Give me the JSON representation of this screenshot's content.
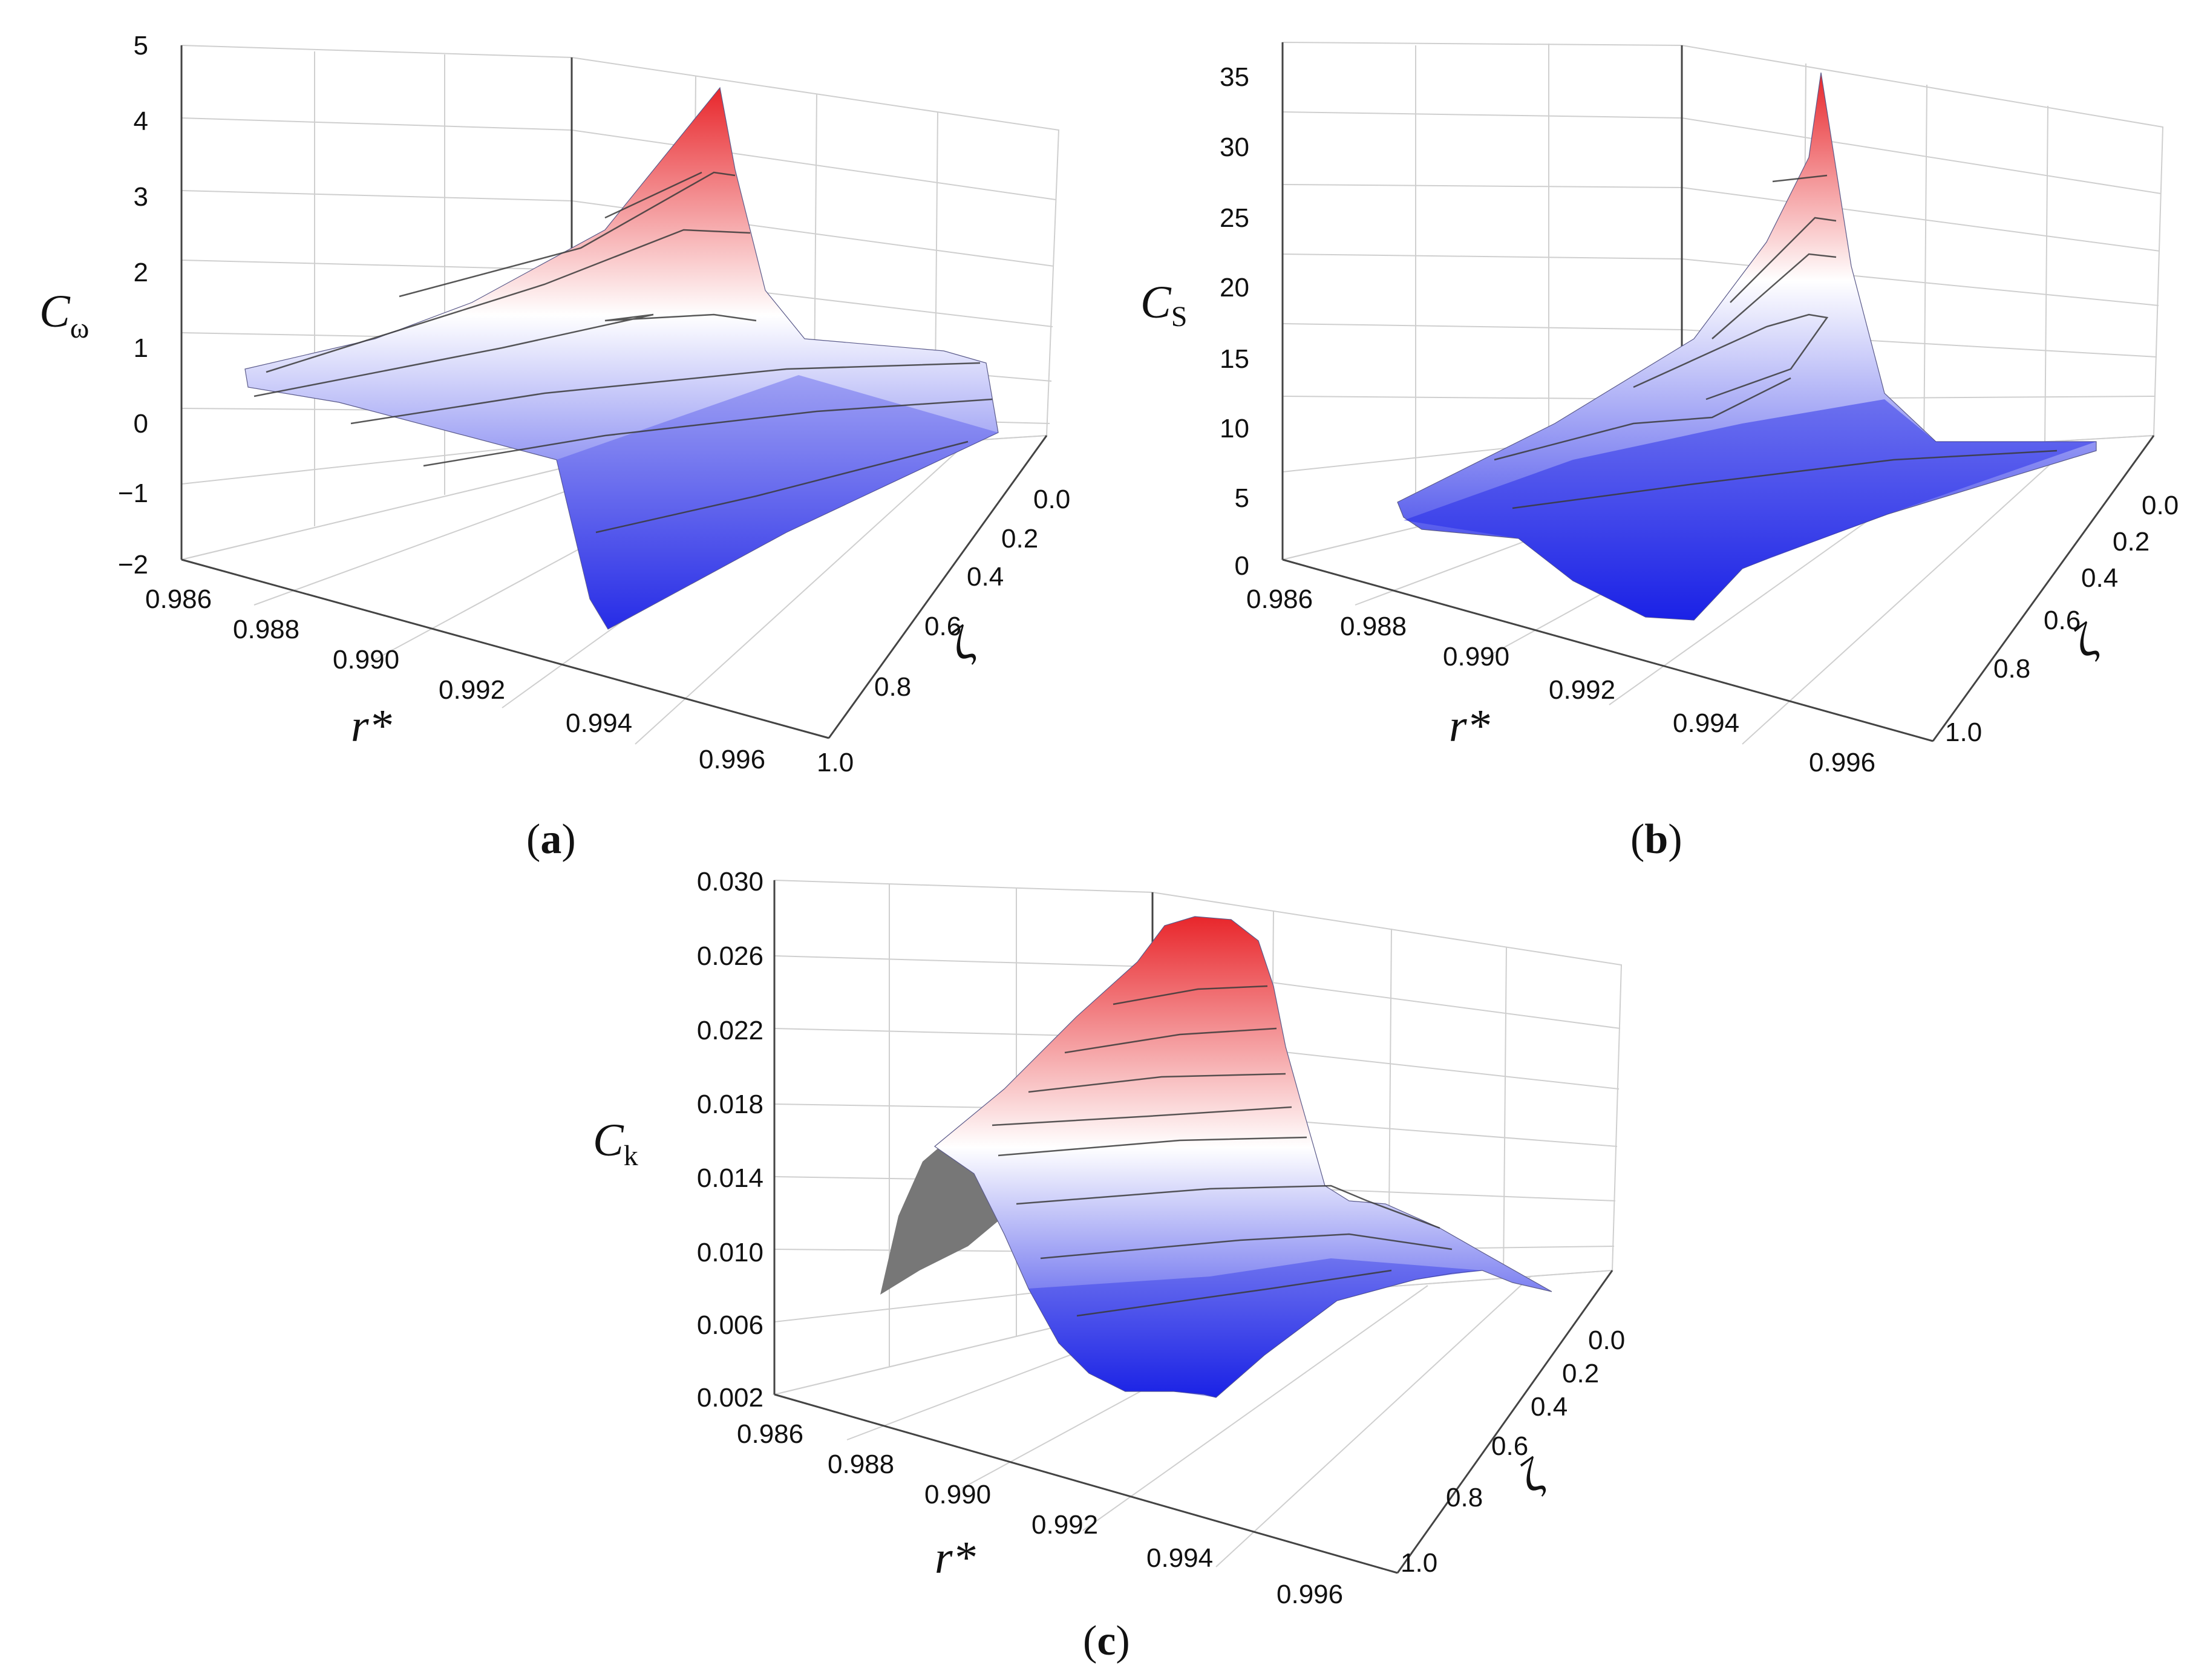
{
  "figure": {
    "panels": [
      {
        "id": "a",
        "label": "(a)",
        "label_letter": "a"
      },
      {
        "id": "b",
        "label": "(b)",
        "label_letter": "b"
      },
      {
        "id": "c",
        "label": "(c)",
        "label_letter": "c"
      }
    ]
  },
  "colors": {
    "high": "#e8262b",
    "mid": "#ffffff",
    "low": "#1b22e6",
    "shadow": "#777777",
    "grid": "#cfcfcf",
    "frame": "#444444"
  },
  "chart_data": [
    {
      "panel": "a",
      "type": "surface3d",
      "zlabel_main": "C",
      "zlabel_sub": "ω",
      "xlabel": "r*",
      "ylabel": "ζ",
      "xticks": [
        "0.986",
        "0.988",
        "0.990",
        "0.992",
        "0.994",
        "0.996"
      ],
      "yticks": [
        "0.0",
        "0.2",
        "0.4",
        "0.6",
        "0.8",
        "1.0"
      ],
      "zticks": [
        "5",
        "4",
        "3",
        "2",
        "1",
        "0",
        "−1",
        "−2"
      ],
      "zlim": [
        -2,
        5
      ],
      "xlim": [
        0.986,
        0.996
      ],
      "ylim": [
        0.0,
        1.0
      ],
      "peak": {
        "r": 0.9908,
        "zeta": 0.0,
        "value": 4.4
      },
      "surface_rows": [
        {
          "zeta": 0.0,
          "values": [
            0.6,
            1.5,
            3.2,
            4.4,
            0.3,
            0.1
          ]
        },
        {
          "zeta": 0.5,
          "values": [
            0.5,
            0.8,
            1.2,
            1.0,
            0.2,
            0.0
          ]
        },
        {
          "zeta": 1.0,
          "values": [
            0.6,
            0.5,
            0.2,
            -1.2,
            -0.6,
            -0.5
          ]
        }
      ]
    },
    {
      "panel": "b",
      "type": "surface3d",
      "zlabel_main": "C",
      "zlabel_sub": "S",
      "xlabel": "r*",
      "ylabel": "ζ",
      "xticks": [
        "0.986",
        "0.988",
        "0.990",
        "0.992",
        "0.994",
        "0.996"
      ],
      "yticks": [
        "0.0",
        "0.2",
        "0.4",
        "0.6",
        "0.8",
        "1.0"
      ],
      "zticks": [
        "35",
        "30",
        "25",
        "20",
        "15",
        "10",
        "5",
        "0"
      ],
      "zlim": [
        0,
        35
      ],
      "xlim": [
        0.986,
        0.996
      ],
      "ylim": [
        0.0,
        1.0
      ],
      "peak": {
        "r": 0.9915,
        "zeta": 0.0,
        "value": 35
      },
      "surface_rows": [
        {
          "zeta": 0.0,
          "values": [
            3.0,
            8.0,
            18.0,
            35.0,
            4.0,
            4.0
          ]
        },
        {
          "zeta": 0.5,
          "values": [
            3.0,
            5.0,
            9.0,
            12.0,
            3.0,
            3.0
          ]
        },
        {
          "zeta": 1.0,
          "values": [
            3.0,
            2.0,
            1.0,
            1.0,
            1.5,
            2.0
          ]
        }
      ]
    },
    {
      "panel": "c",
      "type": "surface3d",
      "zlabel_main": "C",
      "zlabel_sub": "k",
      "xlabel": "r*",
      "ylabel": "ζ",
      "xticks": [
        "0.986",
        "0.988",
        "0.990",
        "0.992",
        "0.994",
        "0.996"
      ],
      "yticks": [
        "0.0",
        "0.2",
        "0.4",
        "0.6",
        "0.8",
        "1.0"
      ],
      "zticks": [
        "0.030",
        "0.026",
        "0.022",
        "0.018",
        "0.014",
        "0.010",
        "0.006",
        "0.002"
      ],
      "zlim": [
        0.002,
        0.03
      ],
      "xlim": [
        0.986,
        0.996
      ],
      "ylim": [
        0.0,
        1.0
      ],
      "peak": {
        "r": 0.9915,
        "zeta": 0.0,
        "value": 0.027
      },
      "surface_rows": [
        {
          "zeta": 0.0,
          "values": [
            0.008,
            0.016,
            0.022,
            0.027,
            0.012,
            0.01
          ]
        },
        {
          "zeta": 0.5,
          "values": [
            0.01,
            0.015,
            0.016,
            0.015,
            0.011,
            0.009
          ]
        },
        {
          "zeta": 1.0,
          "values": [
            0.012,
            0.008,
            0.004,
            0.003,
            0.005,
            0.007
          ]
        }
      ]
    }
  ]
}
